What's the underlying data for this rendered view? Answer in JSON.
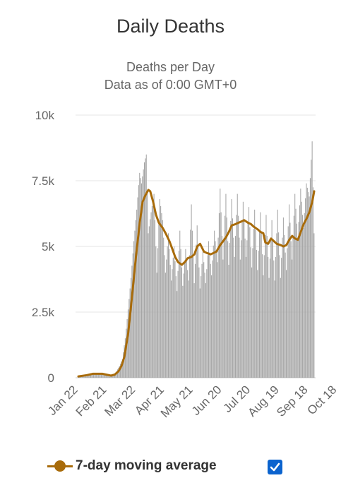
{
  "chart_data": {
    "type": "bar",
    "title": "Daily Deaths",
    "subtitle_line1": "Deaths per Day",
    "subtitle_line2": "Data as of 0:00 GMT+0",
    "x_tick_labels": [
      "Jan 22",
      "Feb 21",
      "Mar 22",
      "Apr 21",
      "May 21",
      "Jun 20",
      "Jul 20",
      "Aug 19",
      "Sep 18",
      "Oct 18"
    ],
    "y_tick_labels": [
      "0",
      "2.5k",
      "5k",
      "7.5k",
      "10k"
    ],
    "ylim": [
      0,
      10000
    ],
    "grid": true,
    "legend_position": "bottom",
    "colors": {
      "bars": "#a6a6a6",
      "moving_average": "#a86b0a",
      "checkbox": "#0b63ce"
    },
    "series": [
      {
        "name": "7-day moving average",
        "type": "line",
        "points": [
          [
            0,
            50
          ],
          [
            9,
            100
          ],
          [
            15,
            150
          ],
          [
            25,
            150
          ],
          [
            34,
            80
          ],
          [
            38,
            120
          ],
          [
            42,
            250
          ],
          [
            45,
            450
          ],
          [
            48,
            800
          ],
          [
            52,
            1700
          ],
          [
            56,
            3100
          ],
          [
            60,
            4600
          ],
          [
            64,
            5900
          ],
          [
            67,
            6700
          ],
          [
            70,
            6950
          ],
          [
            73,
            7150
          ],
          [
            75,
            7100
          ],
          [
            78,
            6700
          ],
          [
            81,
            6200
          ],
          [
            84,
            5900
          ],
          [
            88,
            5700
          ],
          [
            91,
            5500
          ],
          [
            95,
            5200
          ],
          [
            98,
            4900
          ],
          [
            101,
            4600
          ],
          [
            104,
            4400
          ],
          [
            108,
            4300
          ],
          [
            111,
            4400
          ],
          [
            114,
            4550
          ],
          [
            118,
            4600
          ],
          [
            121,
            4700
          ],
          [
            124,
            5000
          ],
          [
            127,
            5100
          ],
          [
            131,
            4800
          ],
          [
            134,
            4750
          ],
          [
            138,
            4700
          ],
          [
            141,
            4750
          ],
          [
            144,
            4800
          ],
          [
            148,
            5050
          ],
          [
            151,
            5200
          ],
          [
            154,
            5350
          ],
          [
            157,
            5550
          ],
          [
            160,
            5800
          ],
          [
            164,
            5850
          ],
          [
            167,
            5900
          ],
          [
            170,
            5950
          ],
          [
            173,
            6000
          ],
          [
            177,
            5900
          ],
          [
            180,
            5850
          ],
          [
            183,
            5750
          ],
          [
            187,
            5650
          ],
          [
            190,
            5550
          ],
          [
            193,
            5500
          ],
          [
            195,
            5150
          ],
          [
            198,
            5100
          ],
          [
            201,
            5300
          ],
          [
            204,
            5200
          ],
          [
            207,
            5100
          ],
          [
            211,
            5050
          ],
          [
            214,
            5000
          ],
          [
            217,
            5050
          ],
          [
            220,
            5250
          ],
          [
            223,
            5400
          ],
          [
            226,
            5300
          ],
          [
            229,
            5250
          ],
          [
            232,
            5550
          ],
          [
            235,
            5850
          ],
          [
            238,
            6050
          ],
          [
            241,
            6300
          ],
          [
            244,
            6700
          ],
          [
            246,
            7100
          ]
        ]
      }
    ],
    "bar_sample_points": [
      [
        0,
        20
      ],
      [
        9,
        60
      ],
      [
        15,
        140
      ],
      [
        22,
        170
      ],
      [
        28,
        120
      ],
      [
        33,
        40
      ],
      [
        37,
        100
      ],
      [
        40,
        250
      ],
      [
        43,
        450
      ],
      [
        46,
        700
      ],
      [
        49,
        1500
      ],
      [
        52,
        2600
      ],
      [
        55,
        3800
      ],
      [
        58,
        5200
      ],
      [
        61,
        6400
      ],
      [
        64,
        7800
      ],
      [
        66,
        7400
      ],
      [
        69,
        8200
      ],
      [
        71,
        8500
      ],
      [
        73,
        5500
      ],
      [
        76,
        6300
      ],
      [
        79,
        7000
      ],
      [
        82,
        4000
      ],
      [
        85,
        6800
      ],
      [
        88,
        6000
      ],
      [
        91,
        4000
      ],
      [
        94,
        5500
      ],
      [
        97,
        3700
      ],
      [
        100,
        5000
      ],
      [
        103,
        3300
      ],
      [
        106,
        5600
      ],
      [
        109,
        3500
      ],
      [
        112,
        4900
      ],
      [
        115,
        3700
      ],
      [
        118,
        6600
      ],
      [
        121,
        3600
      ],
      [
        124,
        5800
      ],
      [
        127,
        3400
      ],
      [
        130,
        4800
      ],
      [
        133,
        3600
      ],
      [
        136,
        5200
      ],
      [
        139,
        3900
      ],
      [
        142,
        5600
      ],
      [
        145,
        4400
      ],
      [
        148,
        7200
      ],
      [
        151,
        4500
      ],
      [
        154,
        7000
      ],
      [
        157,
        4300
      ],
      [
        160,
        6800
      ],
      [
        163,
        4600
      ],
      [
        166,
        7000
      ],
      [
        169,
        4500
      ],
      [
        172,
        6700
      ],
      [
        175,
        4600
      ],
      [
        178,
        6500
      ],
      [
        181,
        4200
      ],
      [
        184,
        6400
      ],
      [
        187,
        4100
      ],
      [
        190,
        6300
      ],
      [
        193,
        3900
      ],
      [
        196,
        6200
      ],
      [
        199,
        3800
      ],
      [
        202,
        6000
      ],
      [
        205,
        3700
      ],
      [
        208,
        6400
      ],
      [
        211,
        3800
      ],
      [
        214,
        6100
      ],
      [
        217,
        4100
      ],
      [
        220,
        6600
      ],
      [
        223,
        4500
      ],
      [
        226,
        7000
      ],
      [
        229,
        5300
      ],
      [
        232,
        7200
      ],
      [
        235,
        5700
      ],
      [
        238,
        7400
      ],
      [
        241,
        6900
      ],
      [
        244,
        9000
      ],
      [
        246,
        5500
      ]
    ]
  },
  "legend": {
    "label": "7-day moving average",
    "checked": true
  }
}
